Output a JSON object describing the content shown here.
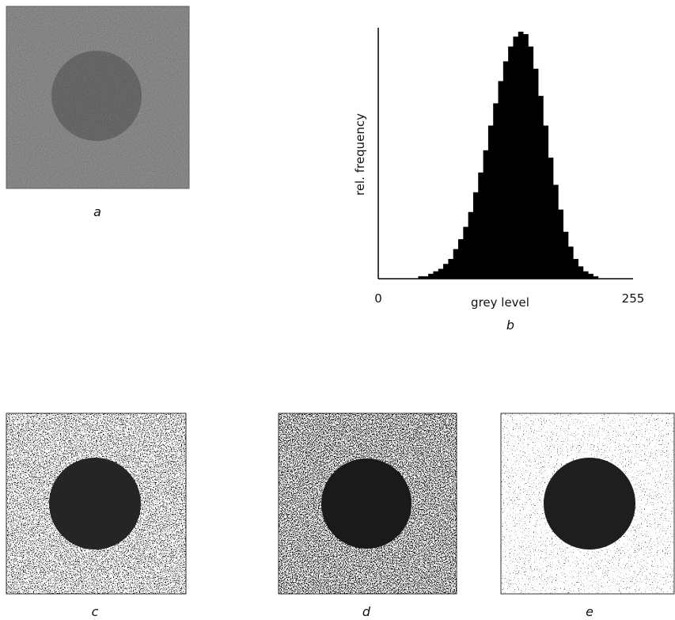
{
  "panels": [
    {
      "label": "a"
    },
    {
      "label": "c"
    },
    {
      "label": "d"
    },
    {
      "label": "e"
    }
  ],
  "chart_data": {
    "type": "histogram",
    "caption": "b",
    "x_label": "grey level",
    "y_label": "rel. frequency",
    "bins": [
      0,
      5,
      10,
      15,
      20,
      25,
      30,
      35,
      40,
      45,
      50,
      55,
      60,
      65,
      70,
      75,
      80,
      85,
      90,
      95,
      100,
      105,
      110,
      115,
      120,
      125,
      130,
      135,
      140,
      145,
      150,
      155,
      160,
      165,
      170,
      175,
      180,
      185,
      190,
      195,
      200,
      205,
      210,
      215,
      220,
      225,
      230,
      235,
      240,
      245,
      250,
      255
    ],
    "values": [
      0,
      0,
      0,
      0,
      0,
      0,
      0,
      0,
      1,
      1,
      2,
      3,
      4,
      6,
      8,
      12,
      16,
      21,
      27,
      35,
      43,
      52,
      62,
      71,
      80,
      88,
      94,
      98,
      100,
      99,
      94,
      85,
      74,
      62,
      49,
      38,
      28,
      19,
      13,
      8,
      5,
      3,
      2,
      1,
      0,
      0,
      0,
      0,
      0,
      0,
      0
    ],
    "color": "#000000",
    "xlim": [
      0,
      255
    ],
    "xticks": [
      0,
      255
    ],
    "ylim": [
      0,
      100
    ]
  }
}
